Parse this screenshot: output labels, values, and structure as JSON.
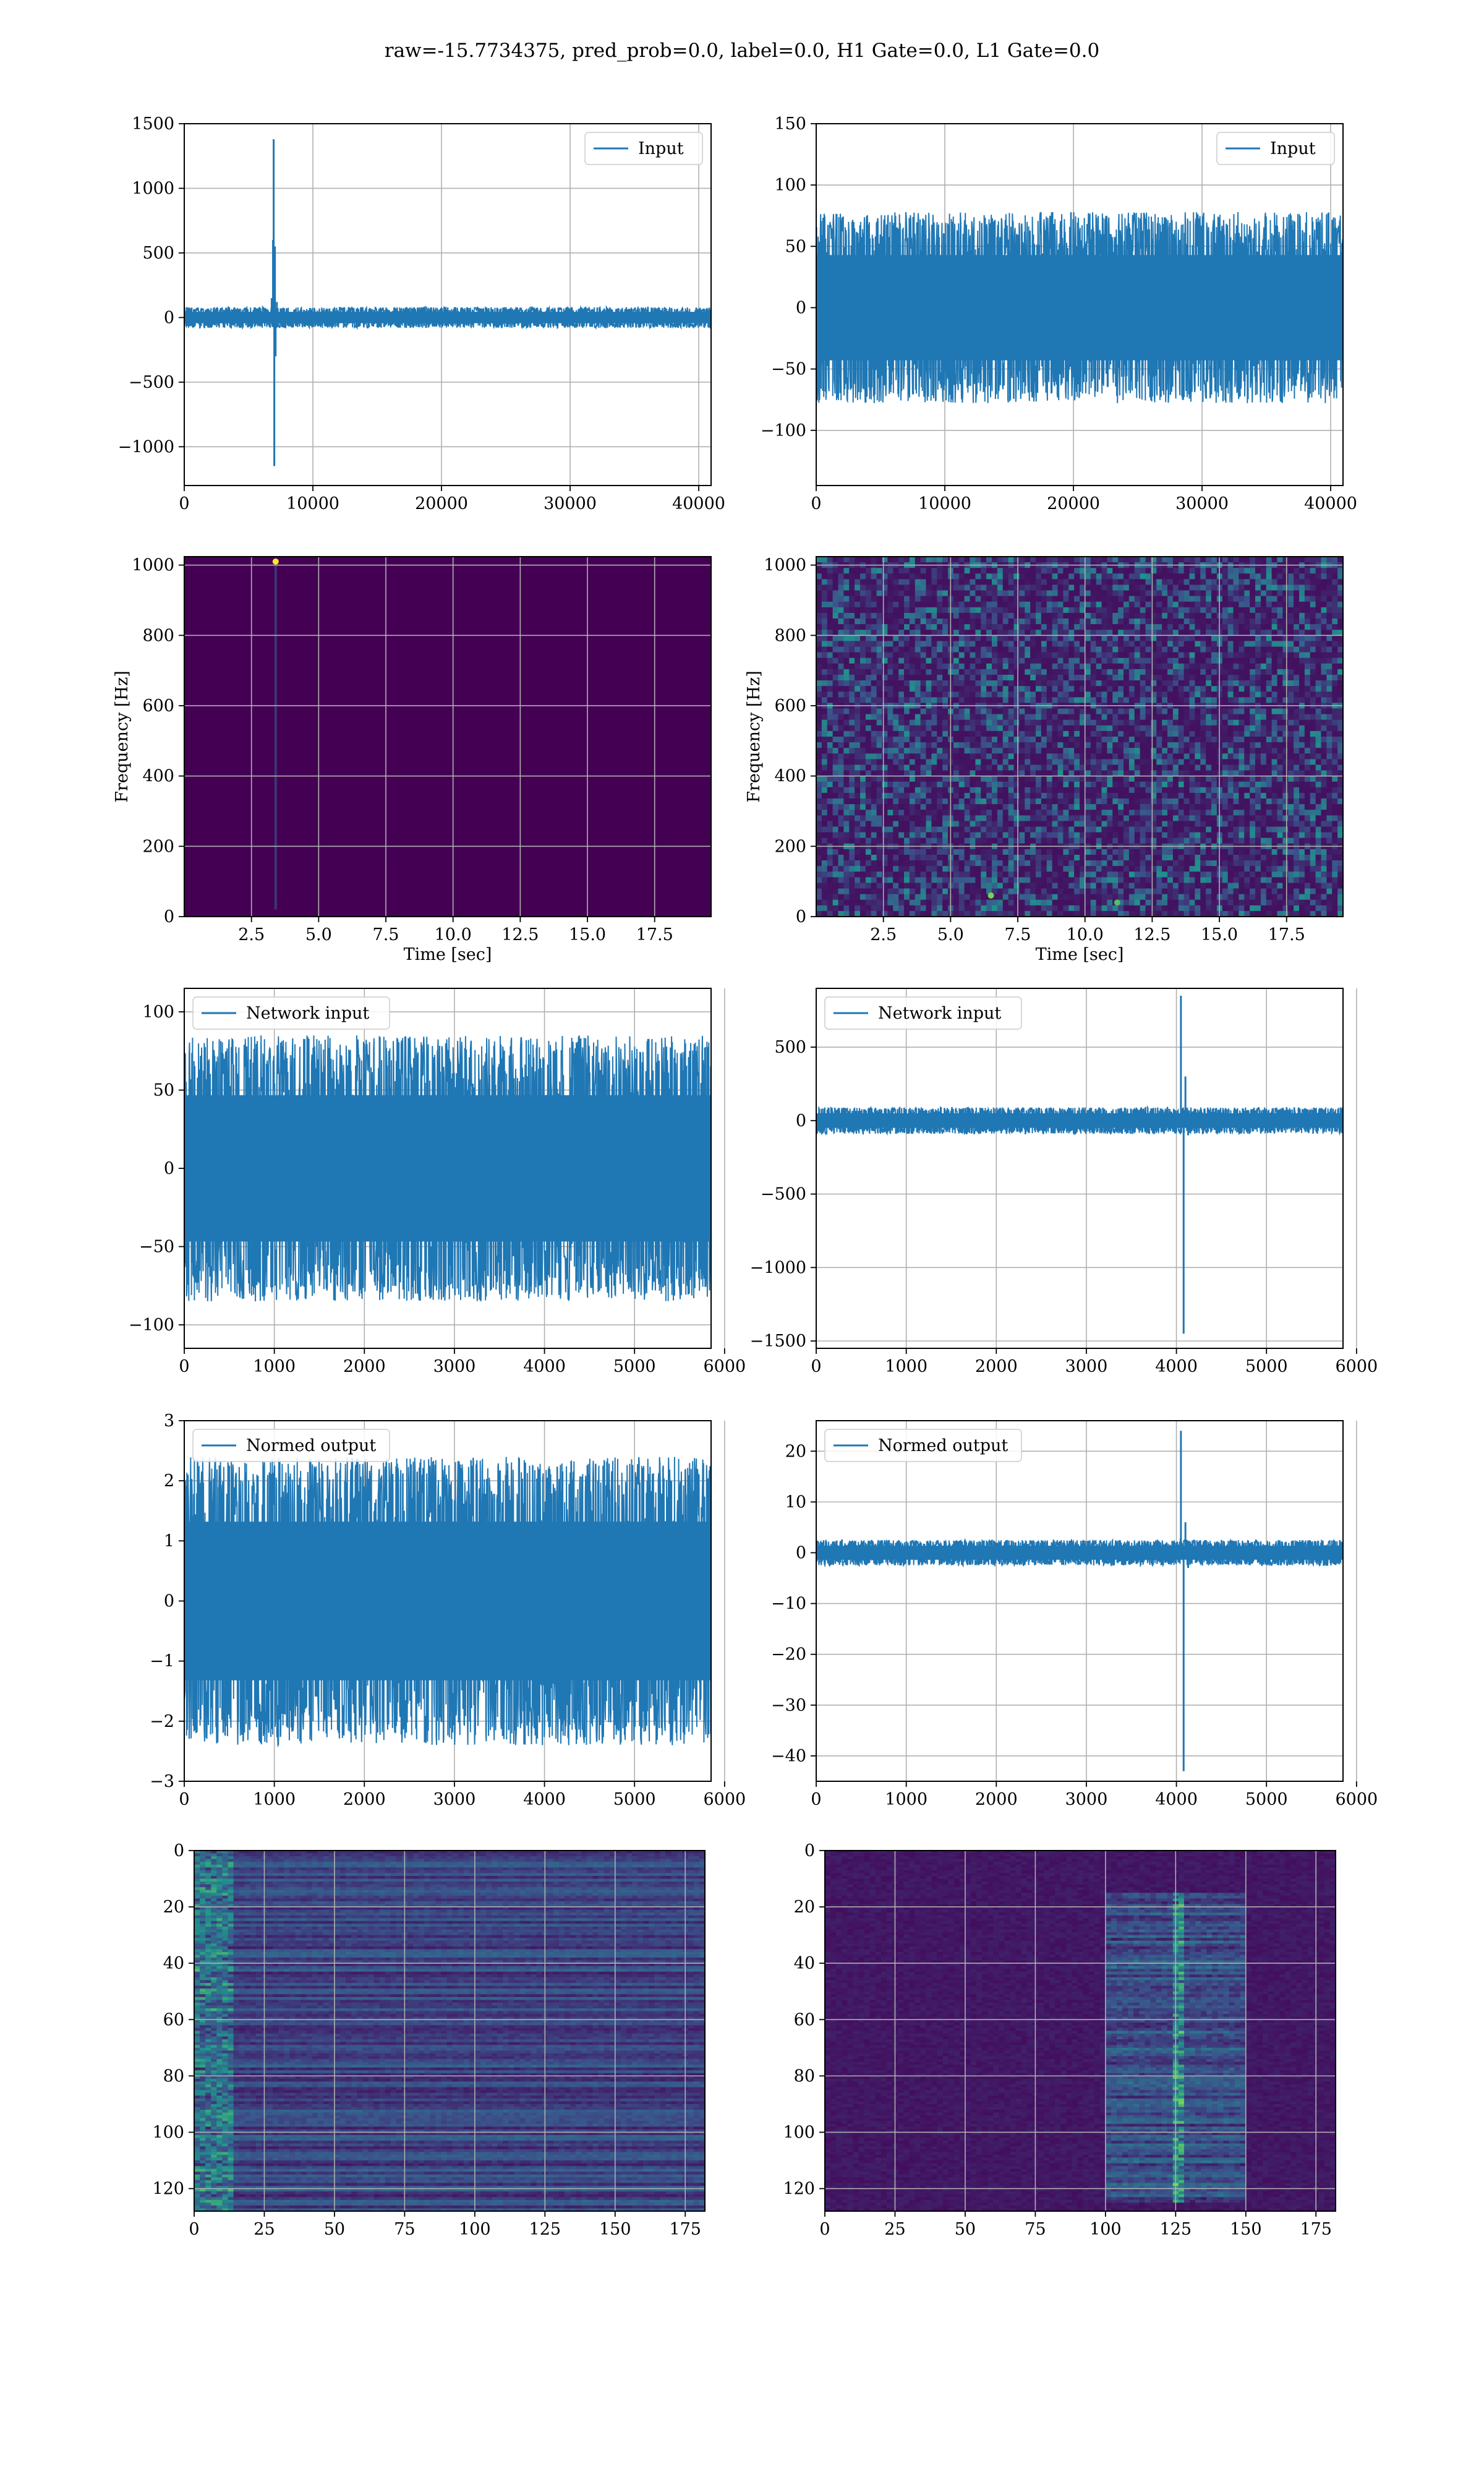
{
  "figure": {
    "title": "raw=-15.7734375, pred_prob=0.0, label=0.0, H1 Gate=0.0, L1 Gate=0.0"
  },
  "colors": {
    "line": "#1f77b4",
    "grid": "#b0b0b0",
    "viridis_low": "#440154",
    "viridis_mid": "#21918c",
    "viridis_high": "#fde725"
  },
  "chart_data": [
    {
      "id": "h1-input",
      "type": "line",
      "legend": "Input",
      "legend_position": "upper right",
      "xlim": [
        0,
        40960
      ],
      "ylim": [
        -1300,
        1500
      ],
      "xticks": [
        0,
        10000,
        20000,
        30000,
        40000
      ],
      "yticks": [
        -1000,
        -500,
        0,
        500,
        1000,
        1500
      ],
      "baseline_amplitude": 80,
      "x": [
        0,
        6800,
        6900,
        6950,
        7000,
        7050,
        7100,
        7200,
        40960
      ],
      "y": [
        0,
        150,
        600,
        1380,
        -1150,
        550,
        -300,
        120,
        0
      ],
      "grid": true
    },
    {
      "id": "l1-input",
      "type": "line",
      "legend": "Input",
      "legend_position": "upper right",
      "xlim": [
        0,
        40960
      ],
      "ylim": [
        -145,
        150
      ],
      "xticks": [
        0,
        10000,
        20000,
        30000,
        40000
      ],
      "yticks": [
        -100,
        -50,
        0,
        50,
        100,
        150
      ],
      "baseline_amplitude": 78,
      "x": [
        0,
        40960
      ],
      "y": [
        0,
        0
      ],
      "grid": true
    },
    {
      "id": "h1-spectrogram",
      "type": "heatmap",
      "xlabel": "Time [sec]",
      "ylabel": "Frequency [Hz]",
      "xlim": [
        0,
        19.6
      ],
      "ylim": [
        0,
        1024
      ],
      "xticks": [
        2.5,
        5.0,
        7.5,
        10.0,
        12.5,
        15.0,
        17.5
      ],
      "xticklabels": [
        "2.5",
        "5.0",
        "7.5",
        "10.0",
        "12.5",
        "15.0",
        "17.5"
      ],
      "yticks": [
        0,
        200,
        400,
        600,
        800,
        1000
      ],
      "features": [
        {
          "kind": "hotspot",
          "t": 3.4,
          "f": 1010,
          "value": 1.0
        },
        {
          "kind": "streak",
          "t": 3.4,
          "f_start": 20,
          "f_end": 1000,
          "value": 0.2
        }
      ],
      "grid": true
    },
    {
      "id": "l1-spectrogram",
      "type": "heatmap",
      "xlabel": "Time [sec]",
      "ylabel": "Frequency [Hz]",
      "xlim": [
        0,
        19.6
      ],
      "ylim": [
        0,
        1024
      ],
      "xticks": [
        2.5,
        5.0,
        7.5,
        10.0,
        12.5,
        15.0,
        17.5
      ],
      "xticklabels": [
        "2.5",
        "5.0",
        "7.5",
        "10.0",
        "12.5",
        "15.0",
        "17.5"
      ],
      "yticks": [
        0,
        200,
        400,
        600,
        800,
        1000
      ],
      "features": [
        {
          "kind": "hotspot",
          "t": 6.5,
          "f": 60,
          "value": 0.8
        },
        {
          "kind": "hotspot",
          "t": 11.2,
          "f": 40,
          "value": 0.7
        }
      ],
      "grid": true
    },
    {
      "id": "h1-network-input",
      "type": "line",
      "legend": "Network input",
      "legend_position": "upper left",
      "xlim": [
        0,
        5850
      ],
      "ylim": [
        -115,
        115
      ],
      "xticks": [
        0,
        1000,
        2000,
        3000,
        4000,
        5000,
        6000
      ],
      "yticks": [
        -100,
        -50,
        0,
        50,
        100
      ],
      "baseline_amplitude": 85,
      "x": [
        0,
        5850
      ],
      "y": [
        0,
        0
      ],
      "grid": true
    },
    {
      "id": "l1-network-input",
      "type": "line",
      "legend": "Network input",
      "legend_position": "upper left",
      "xlim": [
        0,
        5850
      ],
      "ylim": [
        -1550,
        900
      ],
      "xticks": [
        0,
        1000,
        2000,
        3000,
        4000,
        5000,
        6000
      ],
      "yticks": [
        -1500,
        -1000,
        -500,
        0,
        500
      ],
      "baseline_amplitude": 90,
      "x": [
        0,
        4050,
        4080,
        4100,
        4130,
        5850
      ],
      "y": [
        0,
        850,
        -1450,
        300,
        -100,
        0
      ],
      "grid": true
    },
    {
      "id": "h1-normed-output",
      "type": "line",
      "legend": "Normed output",
      "legend_position": "upper left",
      "xlim": [
        0,
        5850
      ],
      "ylim": [
        -3,
        3
      ],
      "xticks": [
        0,
        1000,
        2000,
        3000,
        4000,
        5000,
        6000
      ],
      "yticks": [
        -3,
        -2,
        -1,
        0,
        1,
        2,
        3
      ],
      "baseline_amplitude": 2.4,
      "x": [
        0,
        5850
      ],
      "y": [
        0,
        0
      ],
      "grid": true
    },
    {
      "id": "l1-normed-output",
      "type": "line",
      "legend": "Normed output",
      "legend_position": "upper left",
      "xlim": [
        0,
        5850
      ],
      "ylim": [
        -45,
        26
      ],
      "xticks": [
        0,
        1000,
        2000,
        3000,
        4000,
        5000,
        6000
      ],
      "yticks": [
        -40,
        -30,
        -20,
        -10,
        0,
        10,
        20
      ],
      "baseline_amplitude": 2.5,
      "x": [
        0,
        4050,
        4080,
        4100,
        4130,
        5850
      ],
      "y": [
        0,
        24,
        -43,
        6,
        -3,
        0
      ],
      "grid": true
    },
    {
      "id": "h1-activations",
      "type": "heatmap",
      "xlim": [
        0,
        182
      ],
      "ylim": [
        128,
        0
      ],
      "xticks": [
        0,
        25,
        50,
        75,
        100,
        125,
        150,
        175
      ],
      "yticks": [
        0,
        20,
        40,
        60,
        80,
        100,
        120
      ],
      "features": [
        {
          "kind": "horizontal-bands",
          "left_edge_bright": true
        }
      ],
      "grid": true
    },
    {
      "id": "l1-activations",
      "type": "heatmap",
      "xlim": [
        0,
        182
      ],
      "ylim": [
        128,
        0
      ],
      "xticks": [
        0,
        25,
        50,
        75,
        100,
        125,
        150,
        175
      ],
      "yticks": [
        0,
        20,
        40,
        60,
        80,
        100,
        120
      ],
      "features": [
        {
          "kind": "activity-region",
          "x_start": 100,
          "x_end": 150,
          "y_start": 15,
          "y_end": 125
        }
      ],
      "grid": true
    }
  ]
}
